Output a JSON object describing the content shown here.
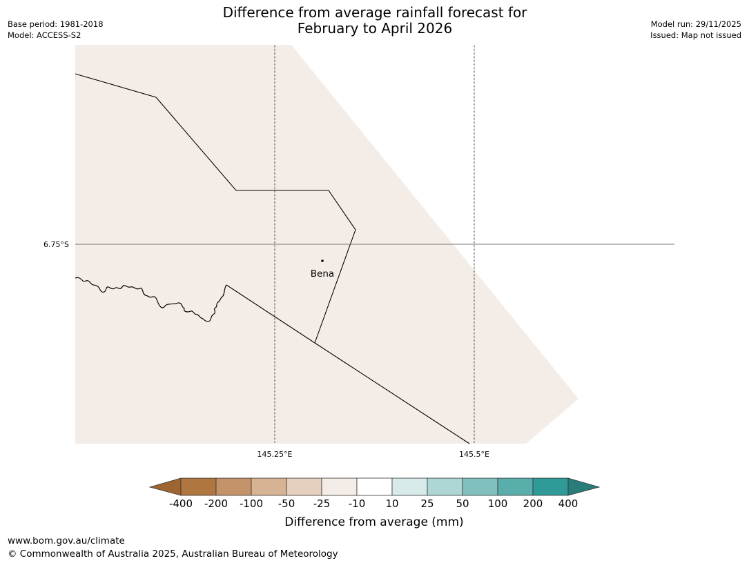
{
  "title": {
    "line1": "Difference from average rainfall forecast for",
    "line2": "February to April 2026"
  },
  "meta_left": {
    "base_period": "Base period: 1981-2018",
    "model": "Model: ACCESS-S2"
  },
  "meta_right": {
    "model_run": "Model run: 29/11/2025",
    "issued": "Issued: Map not issued"
  },
  "map": {
    "fill_color": "#f4ede7",
    "lat_label": "6.75°S",
    "lon_labels": [
      "145.25°E",
      "145.5°E"
    ],
    "place": "Bena"
  },
  "colorbar": {
    "colors": [
      "#9e6532",
      "#b07640",
      "#c3936a",
      "#d5b393",
      "#e5d0bf",
      "#f4ede7",
      "#ffffff",
      "#d8eae9",
      "#aed6d5",
      "#82c0bd",
      "#59aeab",
      "#2f9a97",
      "#287d7b"
    ],
    "tick_labels": [
      "-400",
      "-200",
      "-100",
      "-50",
      "-25",
      "-10",
      "10",
      "25",
      "50",
      "100",
      "200",
      "400"
    ],
    "label": "Difference from average (mm)"
  },
  "footer": {
    "url": "www.bom.gov.au/climate",
    "copyright": "© Commonwealth of Australia 2025, Australian Bureau of Meteorology"
  }
}
